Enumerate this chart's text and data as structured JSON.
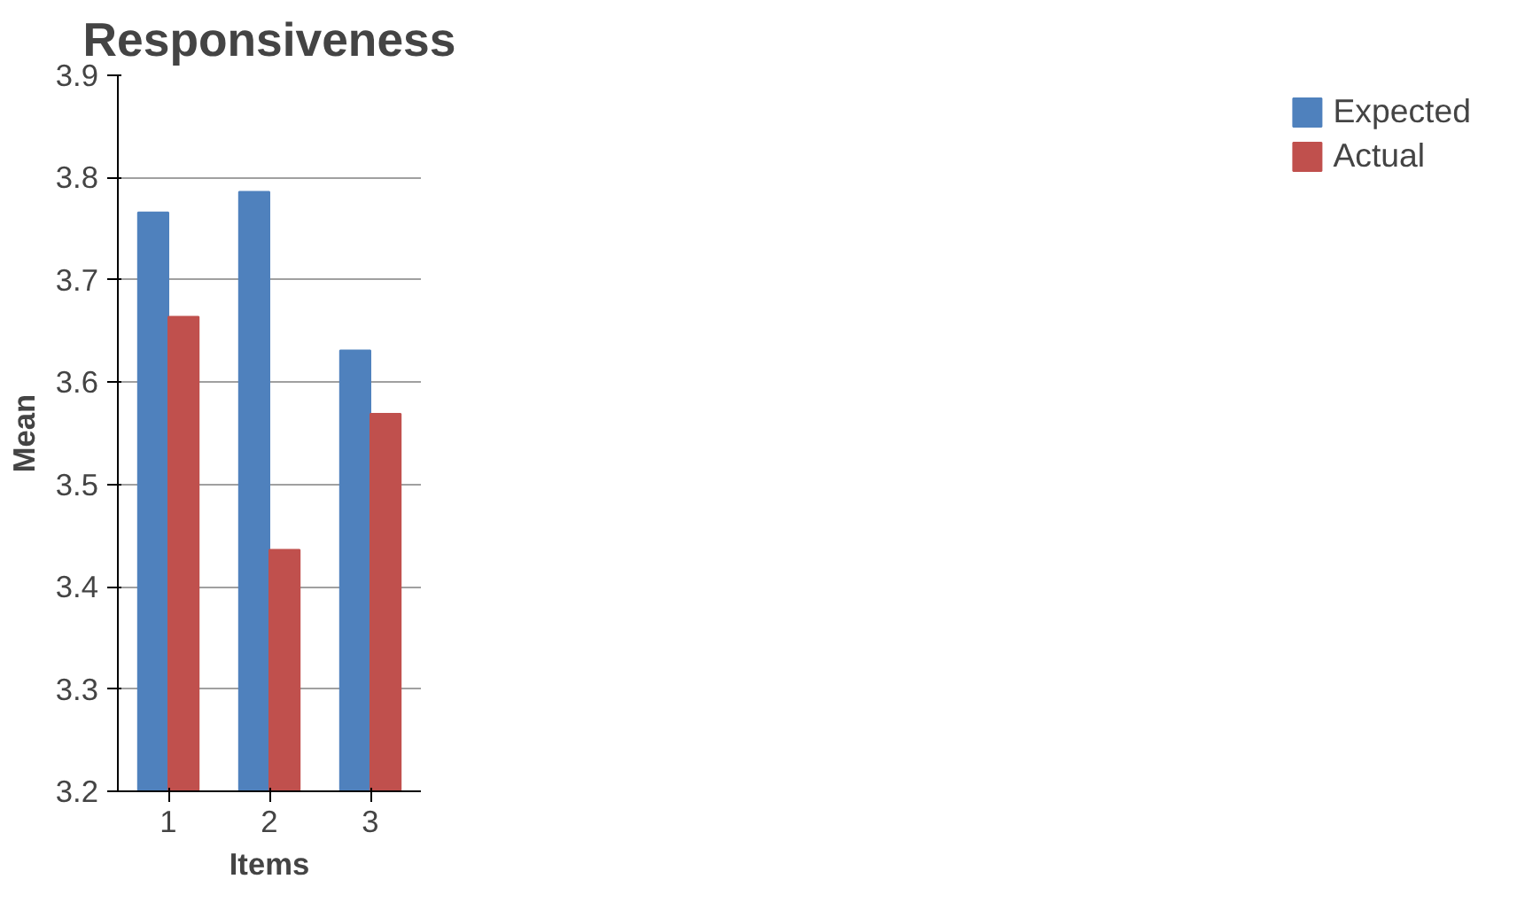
{
  "chart_data": {
    "type": "bar",
    "title": "Responsiveness",
    "xlabel": "Items",
    "ylabel": "Mean",
    "categories": [
      "1",
      "2",
      "3"
    ],
    "series": [
      {
        "name": "Expected",
        "color": "#4f81bd",
        "values": [
          3.766,
          3.786,
          3.631
        ]
      },
      {
        "name": "Actual",
        "color": "#c0504d",
        "values": [
          3.664,
          3.436,
          3.569
        ]
      }
    ],
    "ylim": [
      3.2,
      3.9
    ],
    "yticks": [
      3.2,
      3.3,
      3.4,
      3.5,
      3.6,
      3.7,
      3.8,
      3.9
    ],
    "grid": "y",
    "legend": "right"
  }
}
